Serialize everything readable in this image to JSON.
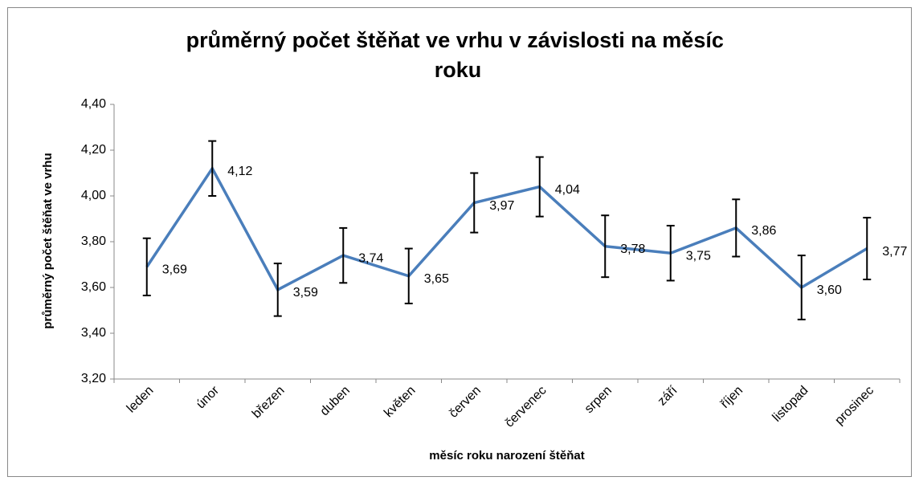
{
  "chart_data": {
    "type": "line",
    "title": "průměrný počet štěňat ve vrhu v závislosti na měsíc roku",
    "x_label": "měsíc roku narození štěňat",
    "y_label": "průměrný počet štěňat ve vrhu",
    "categories": [
      "leden",
      "únor",
      "březen",
      "duben",
      "květen",
      "červen",
      "červenec",
      "srpen",
      "září",
      "říjen",
      "listopad",
      "prosinec"
    ],
    "values": [
      3.69,
      4.12,
      3.59,
      3.74,
      3.65,
      3.97,
      4.04,
      3.78,
      3.75,
      3.86,
      3.6,
      3.77
    ],
    "value_labels": [
      "3,69",
      "4,12",
      "3,59",
      "3,74",
      "3,65",
      "3,97",
      "4,04",
      "3,78",
      "3,75",
      "3,86",
      "3,60",
      "3,77"
    ],
    "errors": [
      0.125,
      0.12,
      0.115,
      0.12,
      0.12,
      0.13,
      0.13,
      0.135,
      0.12,
      0.125,
      0.14,
      0.135
    ],
    "color": "#4a7ebb",
    "ylim": [
      3.2,
      4.4
    ],
    "yticks": [
      {
        "value": 3.2,
        "label": "3,20"
      },
      {
        "value": 3.4,
        "label": "3,40"
      },
      {
        "value": 3.6,
        "label": "3,60"
      },
      {
        "value": 3.8,
        "label": "3,80"
      },
      {
        "value": 4.0,
        "label": "4,00"
      },
      {
        "value": 4.2,
        "label": "4,20"
      },
      {
        "value": 4.4,
        "label": "4,40"
      }
    ],
    "grid": false
  }
}
